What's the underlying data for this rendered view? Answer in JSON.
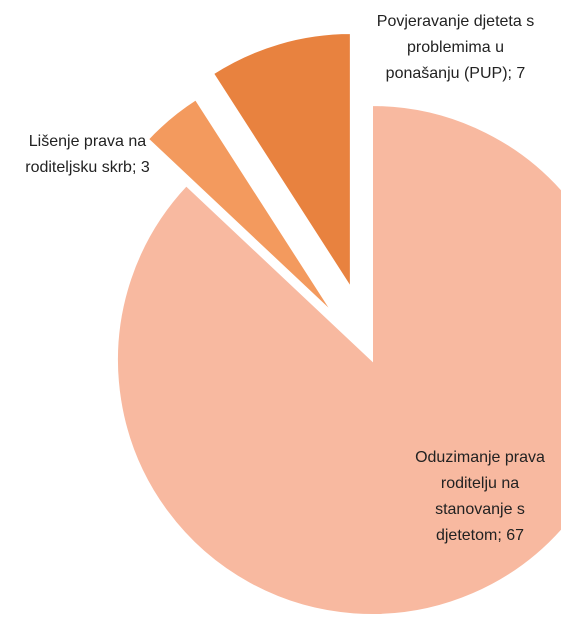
{
  "chart_data": {
    "type": "pie",
    "labels": [
      "Oduzimanje prava roditelju na stanovanje s djetetom; 67",
      "Lišenje prava na roditeljsku skrb; 3",
      "Povjeravanje djeteta s problemima u ponašanju (PUP); 7"
    ],
    "values": [
      67,
      3,
      7
    ],
    "colors": [
      "#f8b9a0",
      "#f39a5e",
      "#e8823f"
    ]
  }
}
